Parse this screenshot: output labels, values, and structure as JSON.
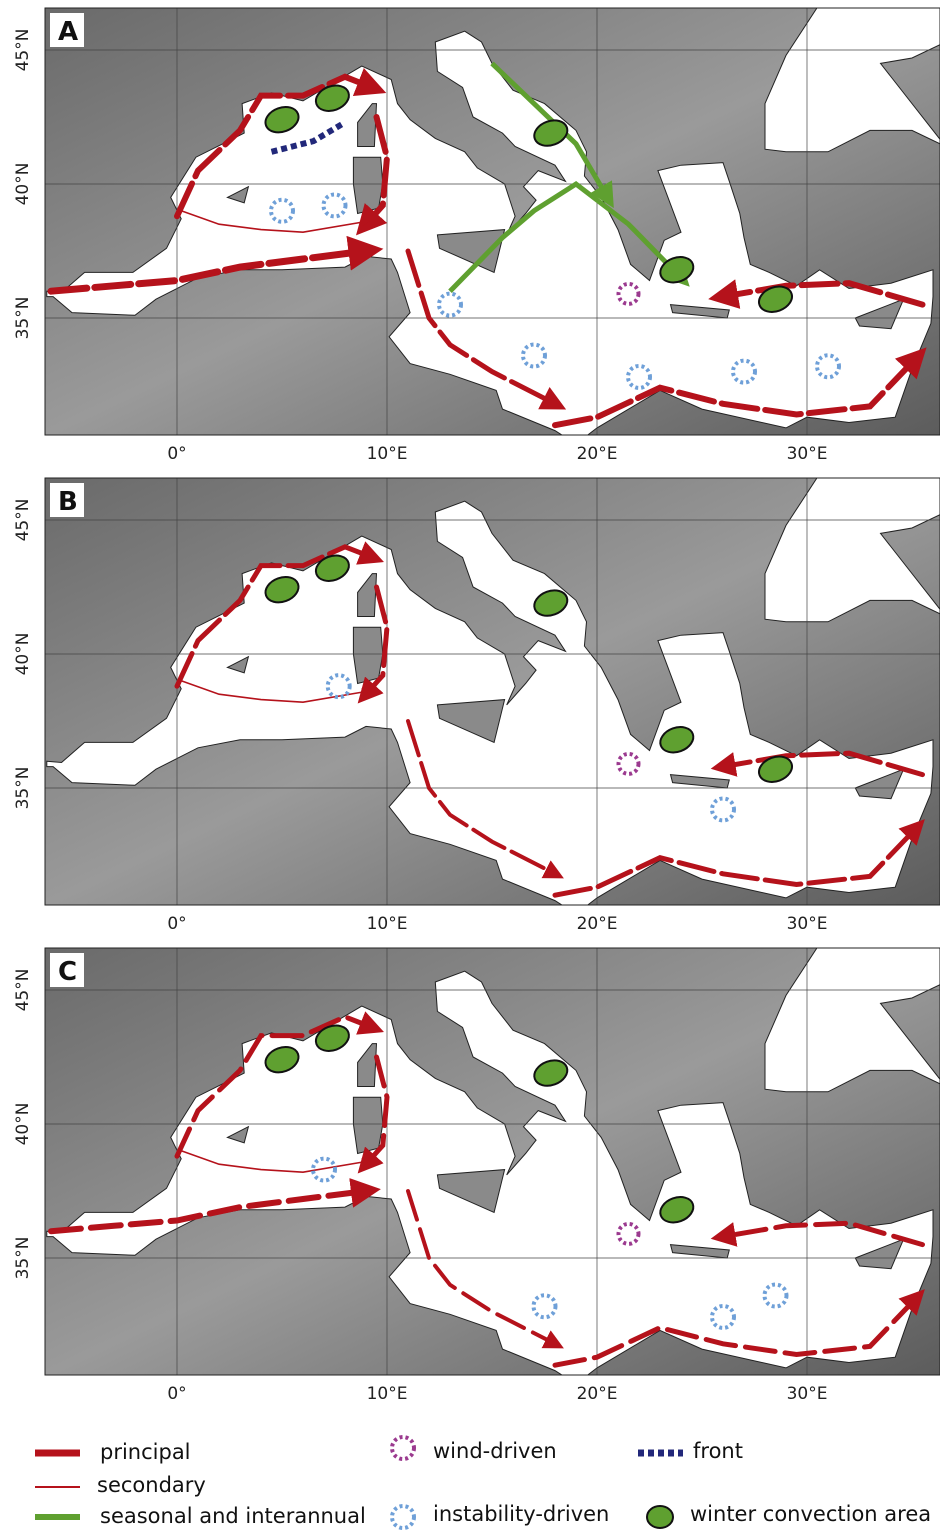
{
  "panels": [
    {
      "label": "A"
    },
    {
      "label": "B"
    },
    {
      "label": "C"
    }
  ],
  "latitude_labels": [
    "45°N",
    "40°N",
    "35°N"
  ],
  "longitude_labels": [
    "0°",
    "10°E",
    "20°E",
    "30°E"
  ],
  "legend": {
    "items": [
      "principal",
      "secondary",
      "seasonal and interannual",
      "wind-driven",
      "instability-driven",
      "front",
      "winter convection area"
    ]
  }
}
